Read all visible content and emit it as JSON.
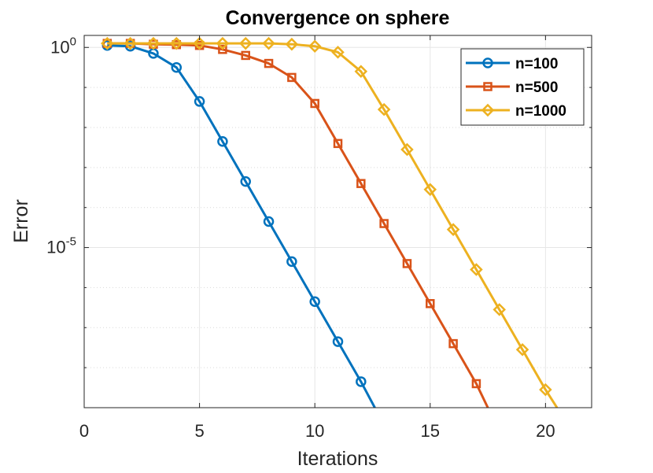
{
  "chart_data": {
    "type": "line",
    "title": "Convergence on sphere",
    "xlabel": "Iterations",
    "ylabel": "Error",
    "xlim": [
      0,
      22
    ],
    "ylog_lim": [
      -9,
      0.3
    ],
    "yscale": "log",
    "grid": true,
    "minor_grid": true,
    "legend_position": "top-right",
    "x_ticks": [
      0,
      5,
      10,
      15,
      20
    ],
    "x_tick_labels": [
      "0",
      "5",
      "10",
      "15",
      "20"
    ],
    "y_ticks": [
      0,
      -5
    ],
    "y_tick_base": "10",
    "y_tick_exponents": [
      "0",
      "-5"
    ],
    "series": [
      {
        "name": "n=100",
        "color": "#0072BD",
        "marker": "circle",
        "x": [
          1,
          2,
          3,
          4,
          5,
          6,
          7,
          8,
          9,
          10,
          11,
          12,
          12.6
        ],
        "log10_y": [
          0.05,
          0.03,
          -0.15,
          -0.5,
          -1.35,
          -2.35,
          -3.35,
          -4.35,
          -5.35,
          -6.35,
          -7.35,
          -8.35,
          -9
        ]
      },
      {
        "name": "n=500",
        "color": "#D95319",
        "marker": "square",
        "x": [
          1,
          2,
          3,
          4,
          5,
          6,
          7,
          8,
          9,
          10,
          11,
          12,
          13,
          14,
          15,
          16,
          17,
          17.5
        ],
        "log10_y": [
          0.1,
          0.1,
          0.08,
          0.07,
          0.05,
          -0.05,
          -0.2,
          -0.4,
          -0.75,
          -1.4,
          -2.4,
          -3.4,
          -4.4,
          -5.4,
          -6.4,
          -7.4,
          -8.4,
          -9
        ]
      },
      {
        "name": "n=1000",
        "color": "#EDB120",
        "marker": "diamond",
        "x": [
          1,
          2,
          3,
          4,
          5,
          6,
          7,
          8,
          9,
          10,
          11,
          12,
          13,
          14,
          15,
          16,
          17,
          18,
          19,
          20,
          20.5
        ],
        "log10_y": [
          0.1,
          0.1,
          0.1,
          0.1,
          0.1,
          0.1,
          0.1,
          0.1,
          0.08,
          0.03,
          -0.12,
          -0.6,
          -1.55,
          -2.55,
          -3.55,
          -4.55,
          -5.55,
          -6.55,
          -7.55,
          -8.55,
          -9
        ]
      }
    ]
  }
}
